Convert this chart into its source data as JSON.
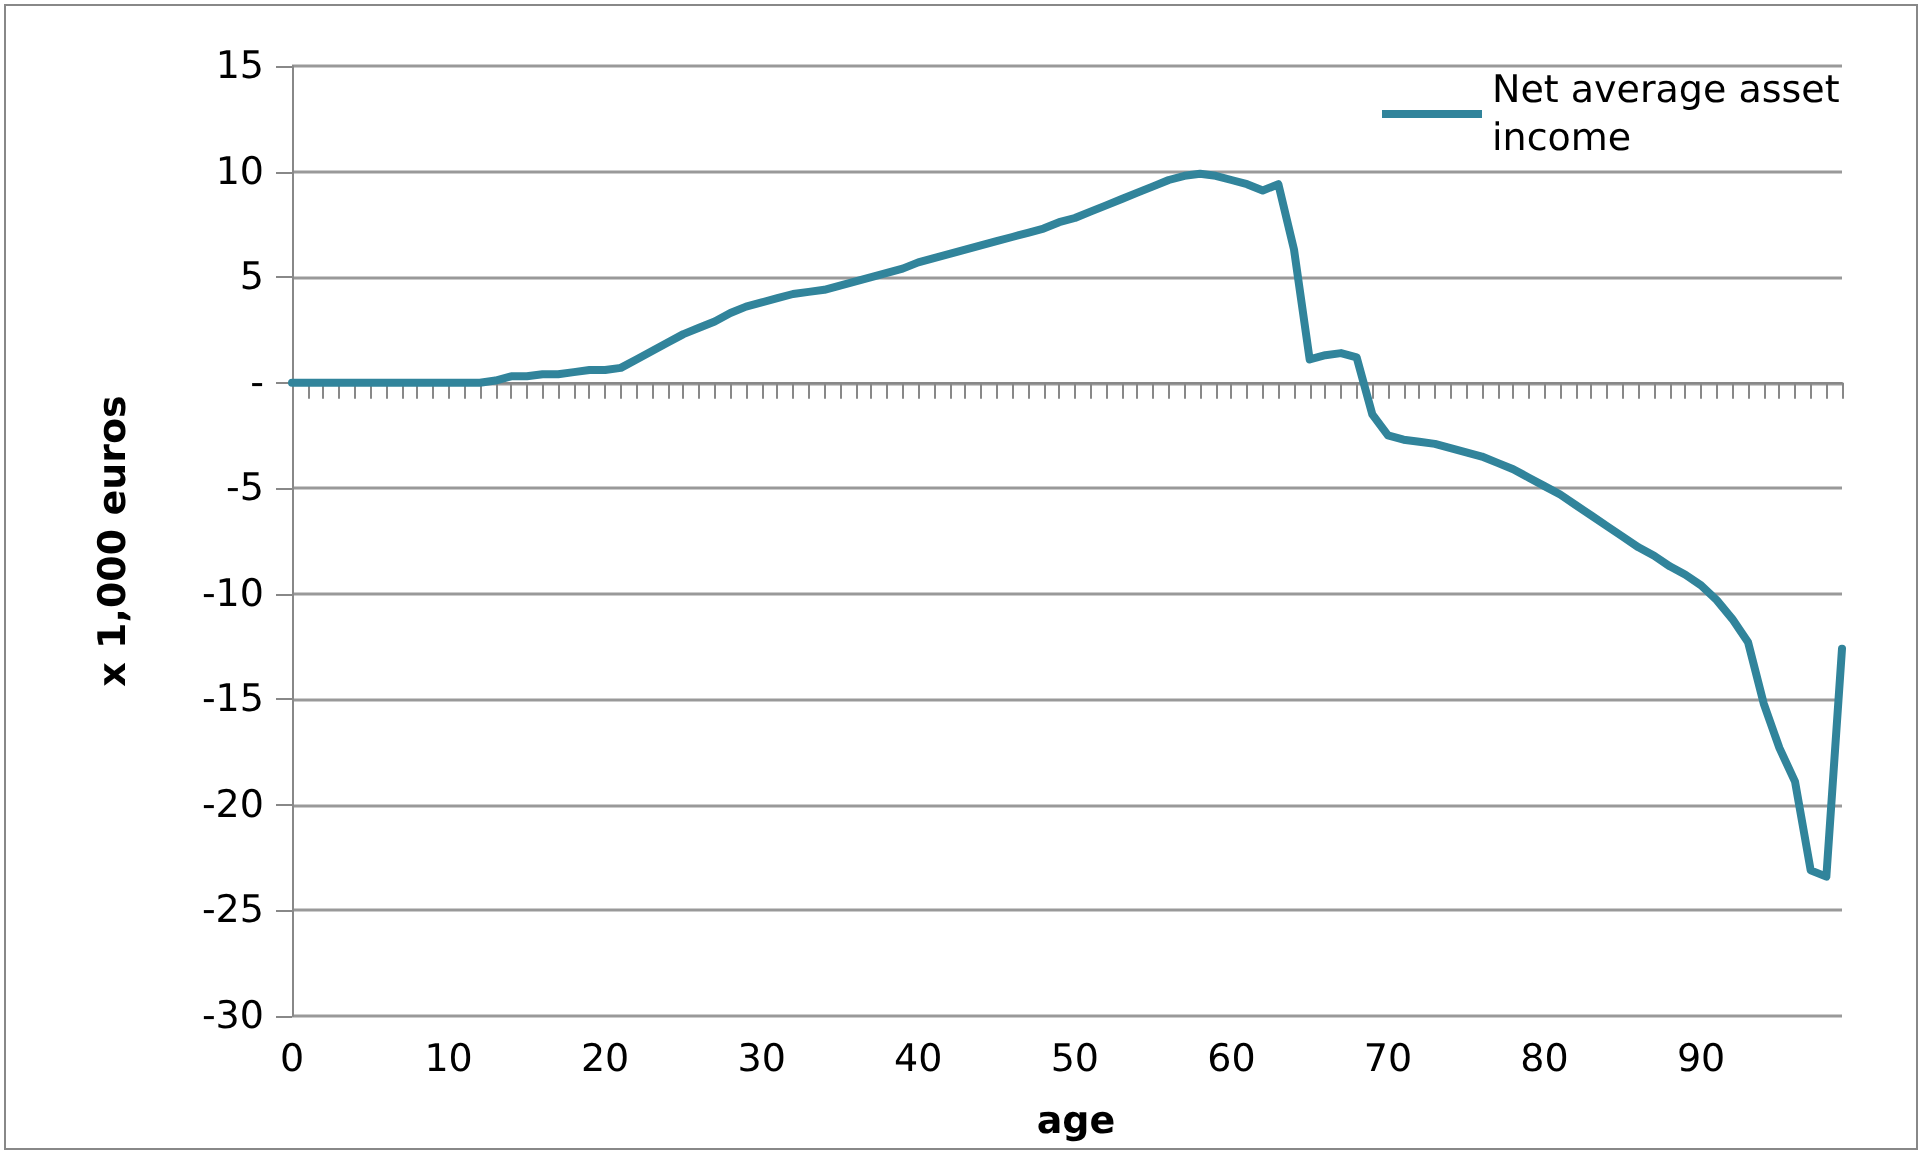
{
  "chart_data": {
    "type": "line",
    "xlabel": "age",
    "ylabel": "x 1,000 euros",
    "categories": [
      "0",
      null,
      null,
      null,
      null,
      null,
      null,
      null,
      null,
      null,
      "10",
      null,
      null,
      null,
      null,
      null,
      null,
      null,
      null,
      null,
      "20",
      null,
      null,
      null,
      null,
      null,
      null,
      null,
      null,
      null,
      "30",
      null,
      null,
      null,
      null,
      null,
      null,
      null,
      null,
      null,
      "40",
      null,
      null,
      null,
      null,
      null,
      null,
      null,
      null,
      null,
      "50",
      null,
      null,
      null,
      null,
      null,
      null,
      null,
      null,
      null,
      "60",
      null,
      null,
      null,
      null,
      null,
      null,
      null,
      null,
      null,
      "70",
      null,
      null,
      null,
      null,
      null,
      null,
      null,
      null,
      null,
      "80",
      null,
      null,
      null,
      null,
      null,
      null,
      null,
      null,
      null,
      "90",
      null,
      null,
      null,
      null,
      null,
      null,
      null,
      null,
      null
    ],
    "series": [
      {
        "name": "Net average asset income",
        "color": "#31849b",
        "values": [
          0,
          0,
          0,
          0,
          0,
          0,
          0,
          0,
          0,
          0,
          0,
          0,
          0,
          0.1,
          0.3,
          0.3,
          0.4,
          0.4,
          0.5,
          0.6,
          0.6,
          0.7,
          1.1,
          1.5,
          1.9,
          2.3,
          2.6,
          2.9,
          3.3,
          3.6,
          3.8,
          4.0,
          4.2,
          4.3,
          4.4,
          4.6,
          4.8,
          5.0,
          5.2,
          5.4,
          5.7,
          5.9,
          6.1,
          6.3,
          6.5,
          6.7,
          6.9,
          7.1,
          7.3,
          7.6,
          7.8,
          8.1,
          8.4,
          8.7,
          9.0,
          9.3,
          9.6,
          9.8,
          9.9,
          9.8,
          9.6,
          9.4,
          9.1,
          9.4,
          6.3,
          1.1,
          1.3,
          1.4,
          1.2,
          -1.5,
          -2.5,
          -2.7,
          -2.8,
          -2.9,
          -3.1,
          -3.3,
          -3.5,
          -3.8,
          -4.1,
          -4.5,
          -4.9,
          -5.3,
          -5.8,
          -6.3,
          -6.8,
          -7.3,
          -7.8,
          -8.2,
          -8.7,
          -9.1,
          -9.6,
          -10.3,
          -11.2,
          -12.3,
          -15.2,
          -17.3,
          -18.9,
          -23.1,
          -23.4,
          -12.6
        ]
      }
    ],
    "ylim": [
      -30,
      15
    ],
    "yticks": [
      -30,
      -25,
      -20,
      -15,
      -10,
      -5,
      {
        "value": 0,
        "label": "-"
      },
      5,
      10,
      15
    ],
    "grid": "y",
    "legend": "top right",
    "marker": "none",
    "line_style": "solid"
  }
}
